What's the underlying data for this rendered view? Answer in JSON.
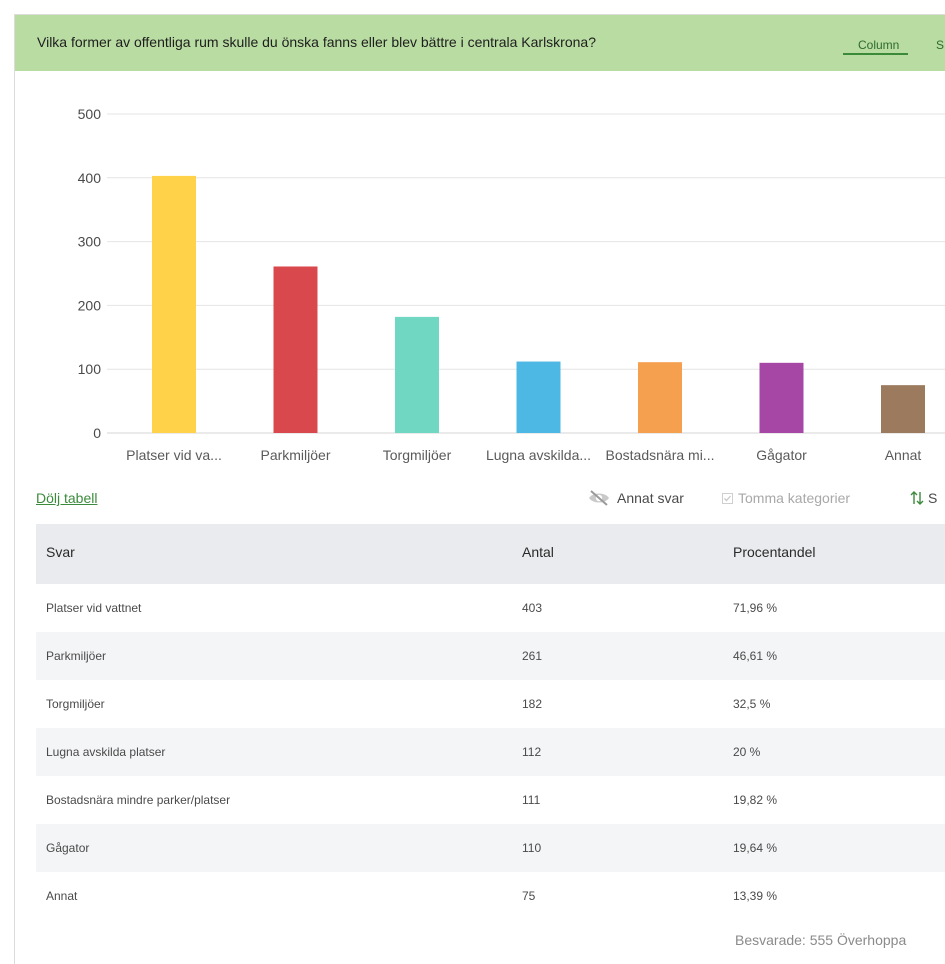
{
  "header": {
    "question": "Vilka former av offentliga rum skulle du önska fanns eller blev bättre i centrala Karlskrona?",
    "tabs": [
      {
        "label": "Column",
        "active": true
      },
      {
        "label": "S",
        "active": false
      }
    ]
  },
  "chart_data": {
    "type": "bar",
    "categories": [
      "Platser vid va...",
      "Parkmiljöer",
      "Torgmiljöer",
      "Lugna avskilda...",
      "Bostadsnära mi...",
      "Gågator",
      "Annat"
    ],
    "values": [
      403,
      261,
      182,
      112,
      111,
      110,
      75
    ],
    "colors": [
      "#ffd24a",
      "#d9484d",
      "#6fd7c2",
      "#4db8e4",
      "#f5a04f",
      "#a647a5",
      "#9c7a5e"
    ],
    "ylim": [
      0,
      500
    ],
    "yticks": [
      0,
      100,
      200,
      300,
      400,
      500
    ],
    "grid": true,
    "title": "",
    "xlabel": "",
    "ylabel": ""
  },
  "toolbar": {
    "hide_table": "Dölj tabell",
    "annat_svar": "Annat svar",
    "tomma_kategorier": "Tomma kategorier",
    "sort": "S"
  },
  "table": {
    "headers": [
      "Svar",
      "Antal",
      "Procentandel"
    ],
    "rows": [
      [
        "Platser vid vattnet",
        "403",
        "71,96 %"
      ],
      [
        "Parkmiljöer",
        "261",
        "46,61 %"
      ],
      [
        "Torgmiljöer",
        "182",
        "32,5 %"
      ],
      [
        "Lugna avskilda platser",
        "112",
        "20 %"
      ],
      [
        "Bostadsnära mindre parker/platser",
        "111",
        "19,82 %"
      ],
      [
        "Gågator",
        "110",
        "19,64 %"
      ],
      [
        "Annat",
        "75",
        "13,39 %"
      ]
    ]
  },
  "footer": "Besvarade: 555  Överhoppa"
}
